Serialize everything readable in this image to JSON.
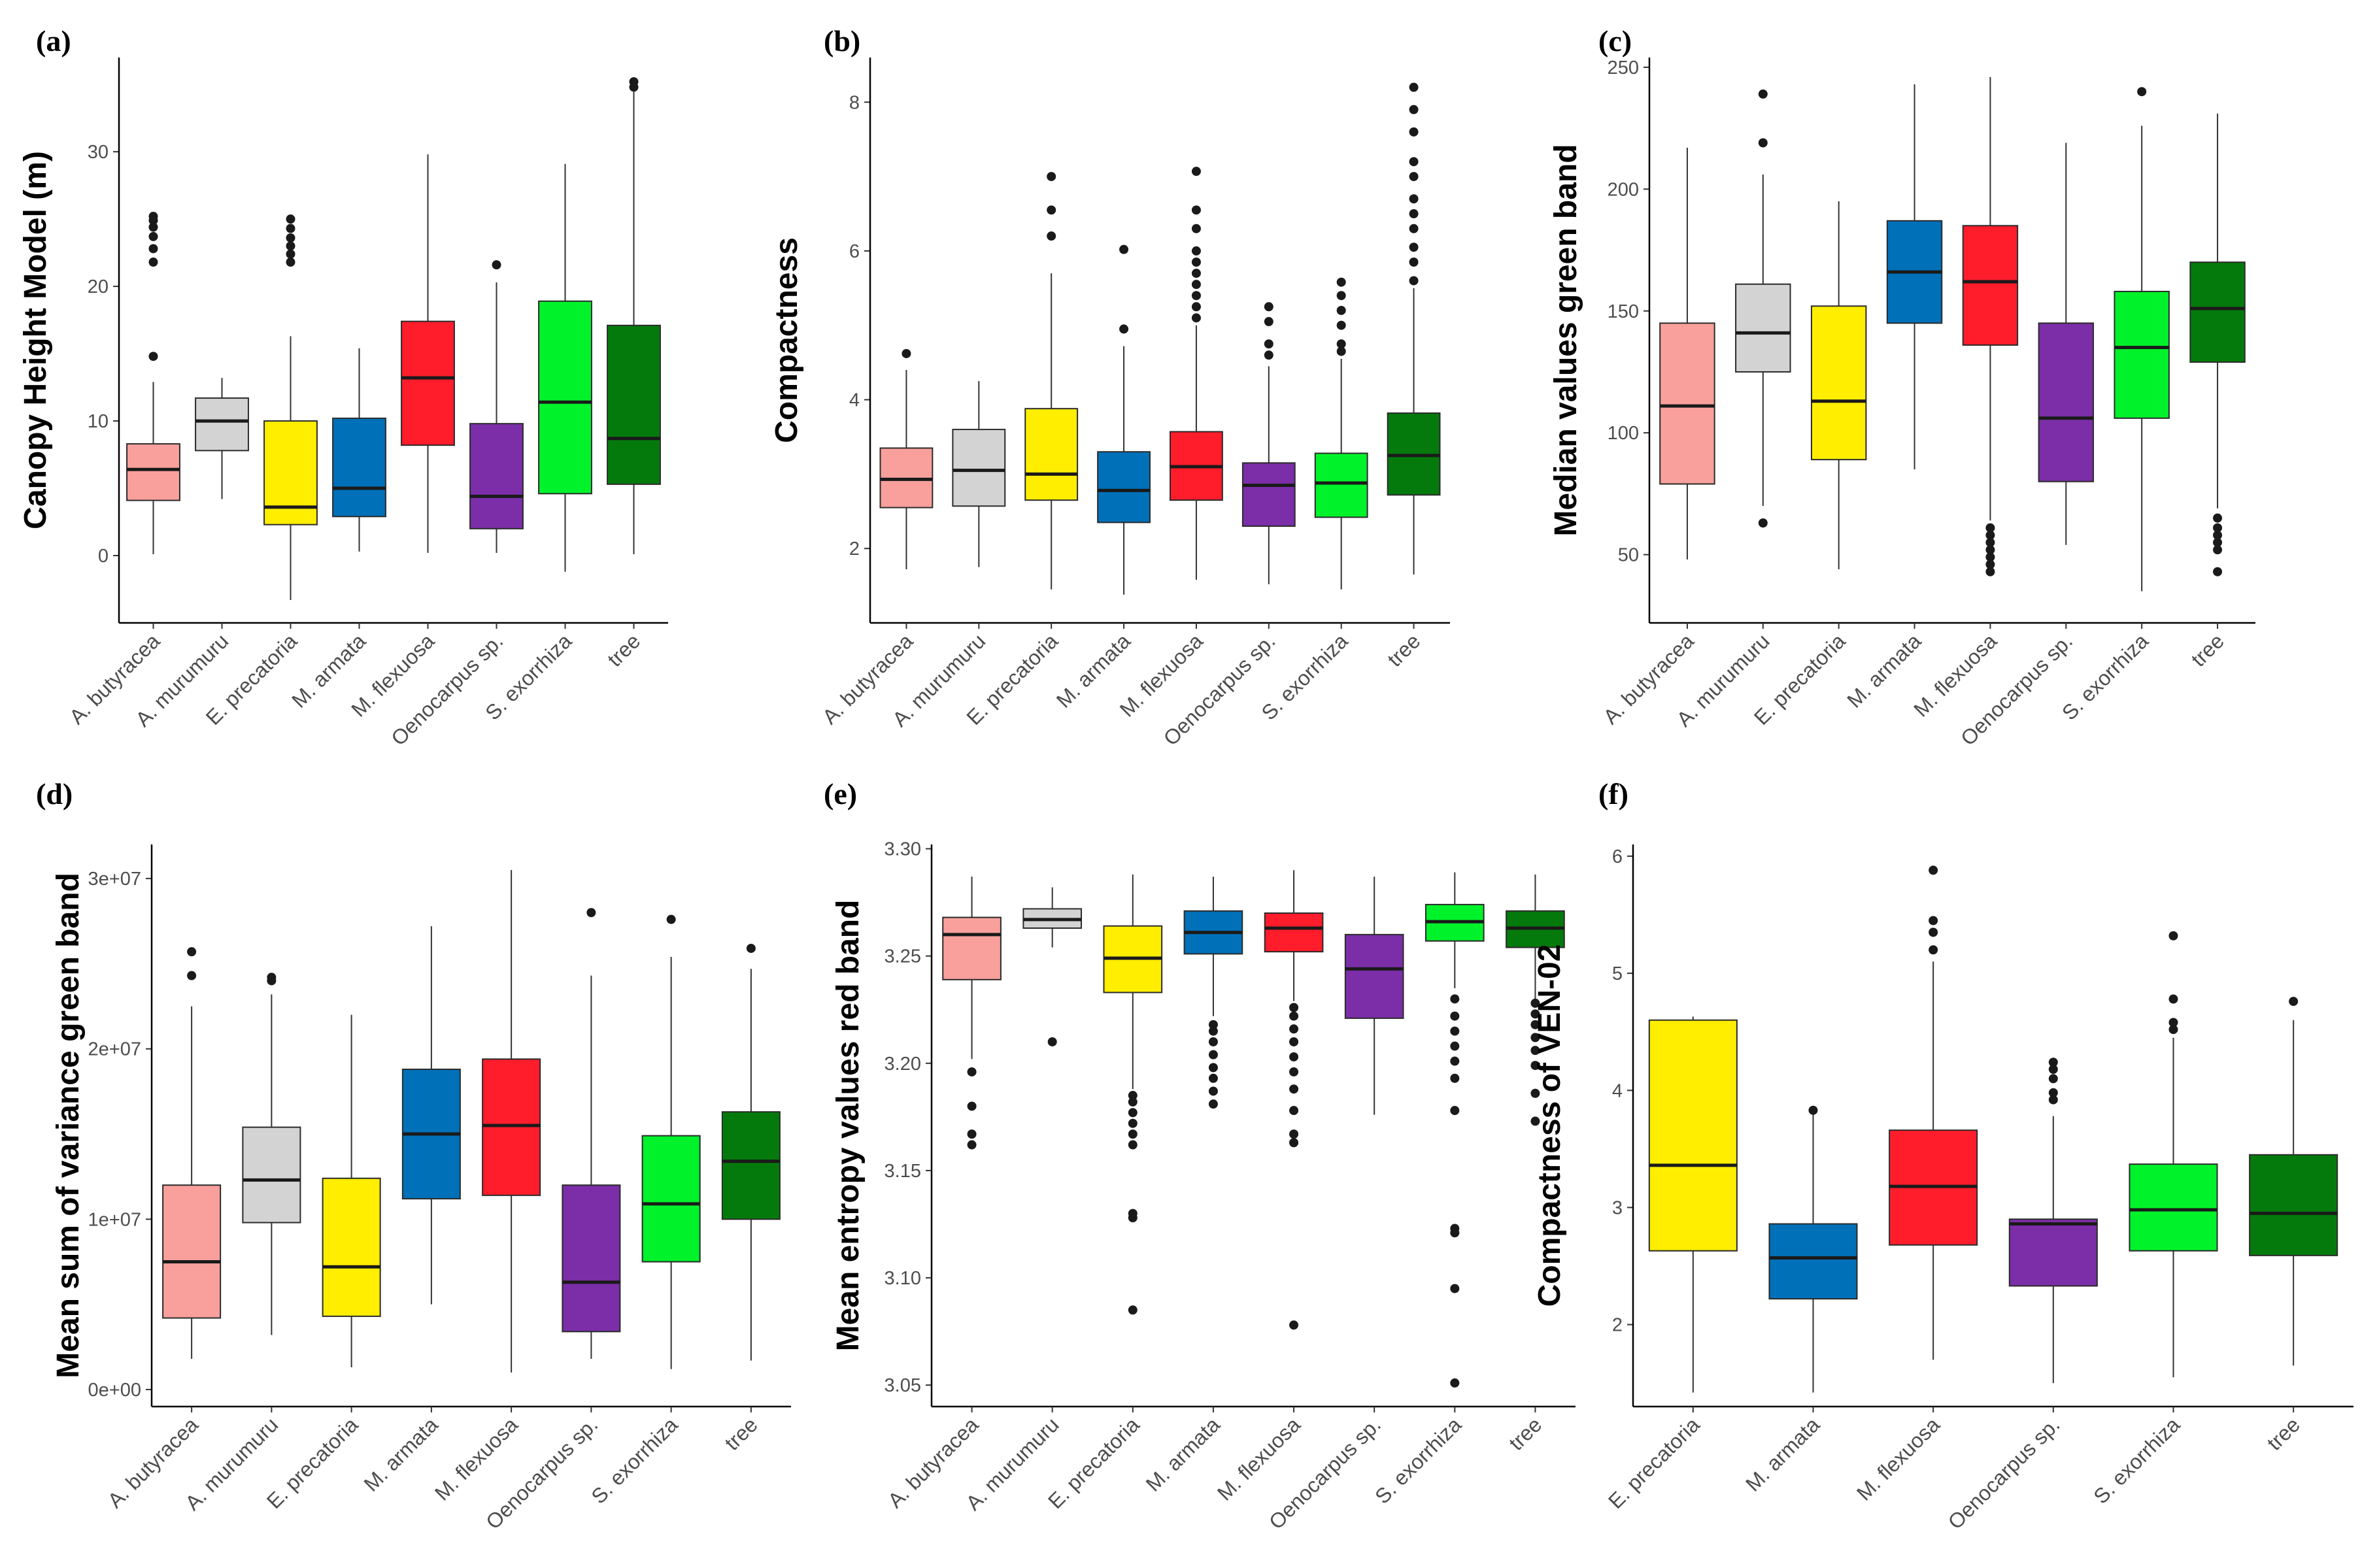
{
  "colors": {
    "A. butyracea": "#f9a09c",
    "A. murumuru": "#d3d3d3",
    "E. precatoria": "#ffee00",
    "M. armata": "#0070b8",
    "M. flexuosa": "#ff1c2b",
    "Oenocarpus sp.": "#7b2ea8",
    "S. exorrhiza": "#00f32a",
    "tree": "#057a0c",
    "axis": "#000000",
    "outlier": "#1a1a1a"
  },
  "chart_data": [
    {
      "panel": "(a)",
      "type": "box",
      "title": "",
      "xlabel": "",
      "ylabel": "Canopy Height Model (m)",
      "ylim": [
        -5,
        37
      ],
      "yticks": [
        0,
        10,
        20,
        30
      ],
      "ytick_labels": [
        "0",
        "10",
        "20",
        "30"
      ],
      "categories": [
        "A. butyracea",
        "A. murumuru",
        "E. precatoria",
        "M. armata",
        "M. flexuosa",
        "Oenocarpus sp.",
        "S. exorrhiza",
        "tree"
      ],
      "boxes": [
        {
          "low": 0.1,
          "q1": 4.1,
          "median": 6.4,
          "q3": 8.3,
          "high": 12.9,
          "outliers": [
            14.8,
            21.8,
            22.8,
            23.7,
            24.4,
            24.9,
            25.2
          ]
        },
        {
          "low": 4.2,
          "q1": 7.8,
          "median": 10.0,
          "q3": 11.7,
          "high": 13.2,
          "outliers": []
        },
        {
          "low": -3.3,
          "q1": 2.3,
          "median": 3.6,
          "q3": 10.0,
          "high": 16.3,
          "outliers": [
            21.8,
            22.4,
            23.0,
            23.6,
            24.3,
            25.0
          ]
        },
        {
          "low": 0.3,
          "q1": 2.9,
          "median": 5.0,
          "q3": 10.2,
          "high": 15.4,
          "outliers": []
        },
        {
          "low": 0.2,
          "q1": 8.2,
          "median": 13.2,
          "q3": 17.4,
          "high": 29.8,
          "outliers": []
        },
        {
          "low": 0.2,
          "q1": 2.0,
          "median": 4.4,
          "q3": 9.8,
          "high": 20.3,
          "outliers": [
            21.6
          ]
        },
        {
          "low": -1.2,
          "q1": 4.6,
          "median": 11.4,
          "q3": 18.9,
          "high": 29.1,
          "outliers": []
        },
        {
          "low": 0.1,
          "q1": 5.3,
          "median": 8.7,
          "q3": 17.1,
          "high": 34.5,
          "outliers": [
            34.8,
            35.2
          ]
        }
      ]
    },
    {
      "panel": "(b)",
      "type": "box",
      "title": "",
      "xlabel": "",
      "ylabel": "Compactness",
      "ylim": [
        1.0,
        8.6
      ],
      "yticks": [
        2,
        4,
        6,
        8
      ],
      "ytick_labels": [
        "2",
        "4",
        "6",
        "8"
      ],
      "categories": [
        "A. butyracea",
        "A. murumuru",
        "E. precatoria",
        "M. armata",
        "M. flexuosa",
        "Oenocarpus sp.",
        "S. exorrhiza",
        "tree"
      ],
      "boxes": [
        {
          "low": 1.72,
          "q1": 2.55,
          "median": 2.93,
          "q3": 3.35,
          "high": 4.4,
          "outliers": [
            4.62
          ]
        },
        {
          "low": 1.75,
          "q1": 2.57,
          "median": 3.05,
          "q3": 3.6,
          "high": 4.25,
          "outliers": []
        },
        {
          "low": 1.45,
          "q1": 2.65,
          "median": 3.0,
          "q3": 3.88,
          "high": 5.7,
          "outliers": [
            6.2,
            6.55,
            7.0
          ]
        },
        {
          "low": 1.38,
          "q1": 2.35,
          "median": 2.78,
          "q3": 3.3,
          "high": 4.72,
          "outliers": [
            4.95,
            6.02
          ]
        },
        {
          "low": 1.58,
          "q1": 2.65,
          "median": 3.1,
          "q3": 3.57,
          "high": 5.0,
          "outliers": [
            5.1,
            5.25,
            5.4,
            5.55,
            5.7,
            5.85,
            6.0,
            6.3,
            6.55,
            7.07
          ]
        },
        {
          "low": 1.52,
          "q1": 2.3,
          "median": 2.85,
          "q3": 3.15,
          "high": 4.45,
          "outliers": [
            4.6,
            4.75,
            5.05,
            5.25
          ]
        },
        {
          "low": 1.45,
          "q1": 2.42,
          "median": 2.88,
          "q3": 3.28,
          "high": 4.55,
          "outliers": [
            4.65,
            4.75,
            5.0,
            5.2,
            5.4,
            5.58
          ]
        },
        {
          "low": 1.65,
          "q1": 2.72,
          "median": 3.25,
          "q3": 3.82,
          "high": 5.5,
          "outliers": [
            5.6,
            5.85,
            6.05,
            6.3,
            6.5,
            6.7,
            7.0,
            7.2,
            7.6,
            7.9,
            8.2
          ]
        }
      ]
    },
    {
      "panel": "(c)",
      "type": "box",
      "title": "",
      "xlabel": "",
      "ylabel": "Median values green band",
      "ylim": [
        22,
        254
      ],
      "yticks": [
        50,
        100,
        150,
        200,
        250
      ],
      "ytick_labels": [
        "50",
        "100",
        "150",
        "200",
        "250"
      ],
      "categories": [
        "A. butyracea",
        "A. murumuru",
        "E. precatoria",
        "M. armata",
        "M. flexuosa",
        "Oenocarpus sp.",
        "S. exorrhiza",
        "tree"
      ],
      "boxes": [
        {
          "low": 48,
          "q1": 79,
          "median": 111,
          "q3": 145,
          "high": 217,
          "outliers": []
        },
        {
          "low": 70,
          "q1": 125,
          "median": 141,
          "q3": 161,
          "high": 206,
          "outliers": [
            63,
            219,
            239
          ]
        },
        {
          "low": 44,
          "q1": 89,
          "median": 113,
          "q3": 152,
          "high": 195,
          "outliers": []
        },
        {
          "low": 85,
          "q1": 145,
          "median": 166,
          "q3": 187,
          "high": 243,
          "outliers": []
        },
        {
          "low": 64,
          "q1": 136,
          "median": 162,
          "q3": 185,
          "high": 246,
          "outliers": [
            43,
            46,
            49,
            52,
            55,
            58,
            61
          ]
        },
        {
          "low": 54,
          "q1": 80,
          "median": 106,
          "q3": 145,
          "high": 219,
          "outliers": []
        },
        {
          "low": 35,
          "q1": 106,
          "median": 135,
          "q3": 158,
          "high": 226,
          "outliers": [
            240
          ]
        },
        {
          "low": 69,
          "q1": 129,
          "median": 151,
          "q3": 170,
          "high": 231,
          "outliers": [
            43,
            52,
            55,
            58,
            61,
            65
          ]
        }
      ]
    },
    {
      "panel": "(d)",
      "type": "box",
      "title": "",
      "xlabel": "",
      "ylabel": "Mean sum of variance green band",
      "ylim": [
        -1000000.0,
        32000000.0
      ],
      "yticks": [
        0,
        10000000,
        20000000,
        30000000
      ],
      "ytick_labels": [
        "0e+00",
        "1e+07",
        "2e+07",
        "3e+07"
      ],
      "categories": [
        "A. butyracea",
        "A. murumuru",
        "E. precatoria",
        "M. armata",
        "M. flexuosa",
        "Oenocarpus sp.",
        "S. exorrhiza",
        "tree"
      ],
      "boxes": [
        {
          "low": 1800000,
          "q1": 4200000,
          "median": 7500000,
          "q3": 12000000,
          "high": 22500000,
          "outliers": [
            24300000,
            25700000
          ]
        },
        {
          "low": 3200000,
          "q1": 9800000,
          "median": 12300000,
          "q3": 15400000,
          "high": 23200000,
          "outliers": [
            24000000,
            24200000
          ]
        },
        {
          "low": 1300000,
          "q1": 4300000,
          "median": 7200000,
          "q3": 12400000,
          "high": 22000000,
          "outliers": []
        },
        {
          "low": 5000000,
          "q1": 11200000,
          "median": 15000000,
          "q3": 18800000,
          "high": 27200000,
          "outliers": []
        },
        {
          "low": 1000000,
          "q1": 11400000,
          "median": 15500000,
          "q3": 19400000,
          "high": 30500000,
          "outliers": []
        },
        {
          "low": 1800000,
          "q1": 3400000,
          "median": 6300000,
          "q3": 12000000,
          "high": 24300000,
          "outliers": [
            28000000
          ]
        },
        {
          "low": 1200000,
          "q1": 7500000,
          "median": 10900000,
          "q3": 14900000,
          "high": 25400000,
          "outliers": [
            27600000
          ]
        },
        {
          "low": 1700000,
          "q1": 10000000,
          "median": 13400000,
          "q3": 16300000,
          "high": 24700000,
          "outliers": [
            25900000
          ]
        }
      ]
    },
    {
      "panel": "(e)",
      "type": "box",
      "title": "",
      "xlabel": "",
      "ylabel": "Mean entropy values red band",
      "ylim": [
        3.04,
        3.302
      ],
      "yticks": [
        3.05,
        3.1,
        3.15,
        3.2,
        3.25,
        3.3
      ],
      "ytick_labels": [
        "3.05",
        "3.10",
        "3.15",
        "3.20",
        "3.25",
        "3.30"
      ],
      "categories": [
        "A. butyracea",
        "A. murumuru",
        "E. precatoria",
        "M. armata",
        "M. flexuosa",
        "Oenocarpus sp.",
        "S. exorrhiza",
        "tree"
      ],
      "boxes": [
        {
          "low": 3.202,
          "q1": 3.239,
          "median": 3.26,
          "q3": 3.268,
          "high": 3.287,
          "outliers": [
            3.162,
            3.167,
            3.18,
            3.196
          ]
        },
        {
          "low": 3.254,
          "q1": 3.263,
          "median": 3.267,
          "q3": 3.272,
          "high": 3.282,
          "outliers": [
            3.21
          ]
        },
        {
          "low": 3.188,
          "q1": 3.233,
          "median": 3.249,
          "q3": 3.264,
          "high": 3.288,
          "outliers": [
            3.085,
            3.128,
            3.13,
            3.162,
            3.167,
            3.172,
            3.177,
            3.182,
            3.185
          ]
        },
        {
          "low": 3.222,
          "q1": 3.251,
          "median": 3.261,
          "q3": 3.271,
          "high": 3.287,
          "outliers": [
            3.181,
            3.187,
            3.193,
            3.198,
            3.204,
            3.21,
            3.215,
            3.218
          ]
        },
        {
          "low": 3.229,
          "q1": 3.252,
          "median": 3.263,
          "q3": 3.27,
          "high": 3.29,
          "outliers": [
            3.078,
            3.163,
            3.167,
            3.178,
            3.188,
            3.196,
            3.203,
            3.21,
            3.216,
            3.222,
            3.226
          ]
        },
        {
          "low": 3.176,
          "q1": 3.221,
          "median": 3.244,
          "q3": 3.26,
          "high": 3.287,
          "outliers": []
        },
        {
          "low": 3.235,
          "q1": 3.257,
          "median": 3.266,
          "q3": 3.274,
          "high": 3.289,
          "outliers": [
            3.051,
            3.095,
            3.121,
            3.123,
            3.178,
            3.193,
            3.201,
            3.208,
            3.215,
            3.222,
            3.23
          ]
        },
        {
          "low": 3.23,
          "q1": 3.254,
          "median": 3.263,
          "q3": 3.271,
          "high": 3.288,
          "outliers": [
            3.173,
            3.186,
            3.199,
            3.206,
            3.212,
            3.218,
            3.223,
            3.228
          ]
        }
      ]
    },
    {
      "panel": "(f)",
      "type": "box",
      "title": "",
      "xlabel": "",
      "ylabel": "Compactness of VEN-02",
      "ylim": [
        1.3,
        6.1
      ],
      "yticks": [
        2,
        3,
        4,
        5,
        6
      ],
      "ytick_labels": [
        "2",
        "3",
        "4",
        "5",
        "6"
      ],
      "categories": [
        "E. precatoria",
        "M. armata",
        "M. flexuosa",
        "Oenocarpus sp.",
        "S. exorrhiza",
        "tree"
      ],
      "boxes": [
        {
          "low": 1.42,
          "q1": 2.63,
          "median": 3.36,
          "q3": 4.6,
          "high": 4.63,
          "outliers": []
        },
        {
          "low": 1.42,
          "q1": 2.22,
          "median": 2.57,
          "q3": 2.86,
          "high": 3.82,
          "outliers": [
            3.83
          ]
        },
        {
          "low": 1.7,
          "q1": 2.68,
          "median": 3.18,
          "q3": 3.66,
          "high": 5.1,
          "outliers": [
            5.2,
            5.35,
            5.45,
            5.88
          ]
        },
        {
          "low": 1.5,
          "q1": 2.33,
          "median": 2.86,
          "q3": 2.9,
          "high": 3.78,
          "outliers": [
            3.92,
            3.98,
            4.1,
            4.18,
            4.24
          ]
        },
        {
          "low": 1.55,
          "q1": 2.63,
          "median": 2.98,
          "q3": 3.37,
          "high": 4.45,
          "outliers": [
            4.52,
            4.58,
            4.78,
            5.32
          ]
        },
        {
          "low": 1.65,
          "q1": 2.59,
          "median": 2.95,
          "q3": 3.45,
          "high": 4.6,
          "outliers": [
            4.76
          ]
        }
      ]
    }
  ]
}
